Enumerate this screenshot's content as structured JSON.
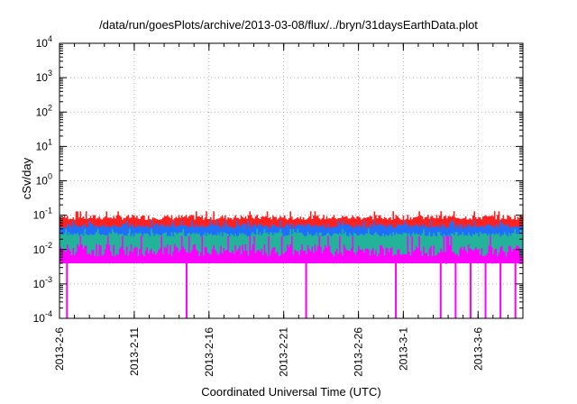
{
  "chart_data": {
    "type": "line",
    "title": "/data/run/goesPlots/archive/2013-03-08/flux/../bryn/31daysEarthData.plot",
    "xlabel": "Coordinated Universal Time (UTC)",
    "ylabel": "cSv/day",
    "yscale": "log",
    "ylim": [
      0.0001,
      10000
    ],
    "xlim": [
      "2013-02-06",
      "2013-03-09"
    ],
    "y_ticks": [
      {
        "base": "10",
        "exp": "-4"
      },
      {
        "base": "10",
        "exp": "-3"
      },
      {
        "base": "10",
        "exp": "-2"
      },
      {
        "base": "10",
        "exp": "-1"
      },
      {
        "base": "10",
        "exp": "0"
      },
      {
        "base": "10",
        "exp": "1"
      },
      {
        "base": "10",
        "exp": "2"
      },
      {
        "base": "10",
        "exp": "3"
      },
      {
        "base": "10",
        "exp": "4"
      }
    ],
    "x_ticks": [
      "2013-2-6",
      "2013-2-11",
      "2013-2-16",
      "2013-2-21",
      "2013-2-26",
      "2013-3-1",
      "2013-3-6"
    ],
    "grid": true,
    "series": [
      {
        "color": "#ff2020",
        "level_range": [
          0.06,
          0.13
        ]
      },
      {
        "color": "#1f6fff",
        "level_range": [
          0.035,
          0.07
        ]
      },
      {
        "color": "#22b39a",
        "level_range": [
          0.02,
          0.04
        ]
      },
      {
        "color": "#ff00ff",
        "level_range": [
          0.004,
          0.025
        ]
      }
    ],
    "dropouts": [
      "2013-02-06",
      "2013-02-14",
      "2013-02-22",
      "2013-02-28",
      "2013-03-03",
      "2013-03-04",
      "2013-03-05",
      "2013-03-06",
      "2013-03-07",
      "2013-03-08"
    ]
  }
}
